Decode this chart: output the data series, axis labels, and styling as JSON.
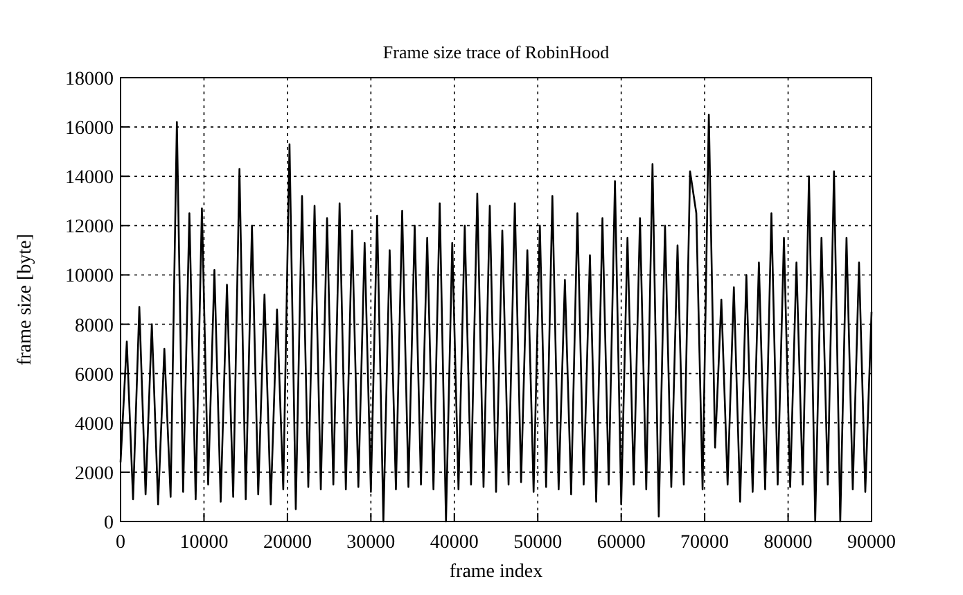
{
  "chart_data": {
    "type": "line",
    "title": "Frame size trace of RobinHood",
    "xlabel": "frame index",
    "ylabel": "frame size [byte]",
    "x": [
      0,
      750,
      1500,
      2250,
      3000,
      3750,
      4500,
      5250,
      6000,
      6750,
      7500,
      8250,
      9000,
      9750,
      10500,
      11250,
      12000,
      12750,
      13500,
      14250,
      15000,
      15750,
      16500,
      17250,
      18000,
      18750,
      19500,
      20250,
      21000,
      21750,
      22500,
      23250,
      24000,
      24750,
      25500,
      26250,
      27000,
      27750,
      28500,
      29250,
      30000,
      30750,
      31500,
      32250,
      33000,
      33750,
      34500,
      35250,
      36000,
      36750,
      37500,
      38250,
      39000,
      39750,
      40500,
      41250,
      42000,
      42750,
      43500,
      44250,
      45000,
      45750,
      46500,
      47250,
      48000,
      48750,
      49500,
      50250,
      51000,
      51750,
      52500,
      53250,
      54000,
      54750,
      55500,
      56250,
      57000,
      57750,
      58500,
      59250,
      60000,
      60750,
      61500,
      62250,
      63000,
      63750,
      64500,
      65250,
      66000,
      66750,
      67500,
      68250,
      69000,
      69750,
      70500,
      71250,
      72000,
      72750,
      73500,
      74250,
      75000,
      75750,
      76500,
      77250,
      78000,
      78750,
      79500,
      80250,
      81000,
      81750,
      82500,
      83250,
      84000,
      84750,
      85500,
      86250,
      87000,
      87750,
      88500,
      89250,
      90000
    ],
    "series": [
      {
        "color": "#000000",
        "values": [
          2400,
          7300,
          900,
          8700,
          1100,
          8000,
          700,
          7000,
          1000,
          16200,
          1200,
          12500,
          900,
          12700,
          1500,
          10200,
          800,
          9600,
          1000,
          14300,
          900,
          12000,
          1100,
          9200,
          700,
          8600,
          1300,
          15300,
          500,
          13200,
          1400,
          12800,
          1300,
          12300,
          1500,
          12900,
          1300,
          11800,
          1400,
          11300,
          1200,
          12400,
          0,
          11000,
          1300,
          12600,
          1400,
          12000,
          1500,
          11500,
          1300,
          12900,
          0,
          11300,
          1300,
          12000,
          1500,
          13300,
          1400,
          12800,
          1200,
          11800,
          1500,
          12900,
          1600,
          11000,
          1200,
          12000,
          1400,
          13200,
          1300,
          9800,
          1100,
          12500,
          1500,
          10800,
          800,
          12300,
          1500,
          13800,
          700,
          11500,
          1500,
          12300,
          1300,
          14500,
          200,
          12000,
          1400,
          11200,
          1500,
          14200,
          12500,
          1300,
          16500,
          3000,
          9000,
          1500,
          9500,
          800,
          10000,
          1200,
          10500,
          1300,
          12500,
          1500,
          11500,
          1400,
          10500,
          1500,
          14000,
          0,
          11500,
          1500,
          14200,
          0,
          11500,
          1300,
          10500,
          1200,
          8500
        ]
      }
    ],
    "xlim": [
      0,
      90000
    ],
    "xticks": [
      0,
      10000,
      20000,
      30000,
      40000,
      50000,
      60000,
      70000,
      80000,
      90000
    ],
    "ylim": [
      0,
      18000
    ],
    "yticks": [
      0,
      2000,
      4000,
      6000,
      8000,
      10000,
      12000,
      14000,
      16000,
      18000
    ],
    "grid": true,
    "line_style": "solid",
    "marker": "none"
  }
}
